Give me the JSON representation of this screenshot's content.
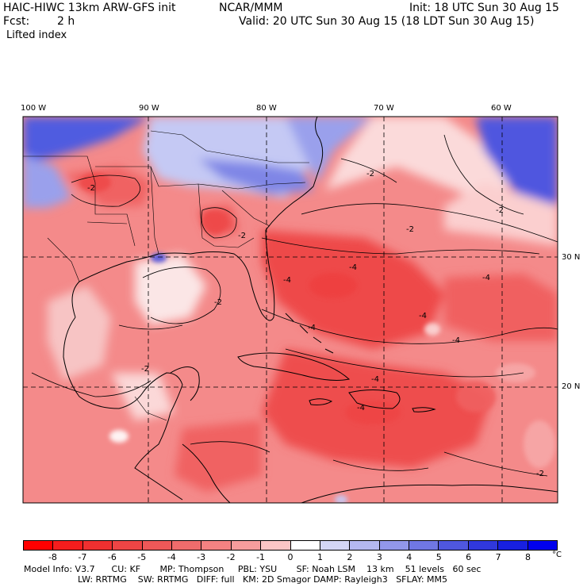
{
  "header": {
    "model": "HAIC-HIWC 13km ARW-GFS init",
    "org": "NCAR/MMM",
    "init": "Init: 18 UTC Sun 30 Aug 15",
    "fcst_label": "Fcst:",
    "fcst_value": "2 h",
    "valid": "Valid: 20 UTC Sun 30 Aug 15 (18 LDT Sun 30 Aug 15)",
    "field": "Lifted index"
  },
  "map": {
    "lon_labels": [
      "100 W",
      "90 W",
      "80 W",
      "70 W",
      "60 W"
    ],
    "lat_labels": [
      "30 N",
      "20 N"
    ],
    "contour_labels": [
      "-2",
      "-2",
      "-2",
      "-2",
      "-2",
      "-2",
      "-4",
      "-4",
      "-4",
      "-4",
      "-4",
      "-4",
      "-4",
      "-4",
      "-2",
      "-2"
    ],
    "colors": {
      "frame": "#000000",
      "grid": "#000000",
      "land_outline": "#000000"
    }
  },
  "colorbar": {
    "tick_labels": [
      "-8",
      "-7",
      "-6",
      "-5",
      "-4",
      "-3",
      "-2",
      "-1",
      "0",
      "1",
      "2",
      "3",
      "4",
      "5",
      "6",
      "7",
      "8"
    ],
    "unit": "°C",
    "colors": [
      "#ff0000",
      "#f51d1d",
      "#f03030",
      "#ee4545",
      "#ee5858",
      "#f06c6c",
      "#f48282",
      "#f79d9d",
      "#fbc6c6",
      "#ffffff",
      "#d4d6f6",
      "#b4b8f0",
      "#9297ea",
      "#7077e4",
      "#4f57df",
      "#3038dc",
      "#1820e0",
      "#0000ee"
    ]
  },
  "footer": {
    "line1": "Model Info: V3.7      CU: KF       MP: Thompson     PBL: YSU       SF: Noah LSM    13 km    51 levels   60 sec",
    "line2": "LW: RRTMG    SW: RRTMG   DIFF: full   KM: 2D Smagor DAMP: Rayleigh3   SFLAY: MM5"
  }
}
